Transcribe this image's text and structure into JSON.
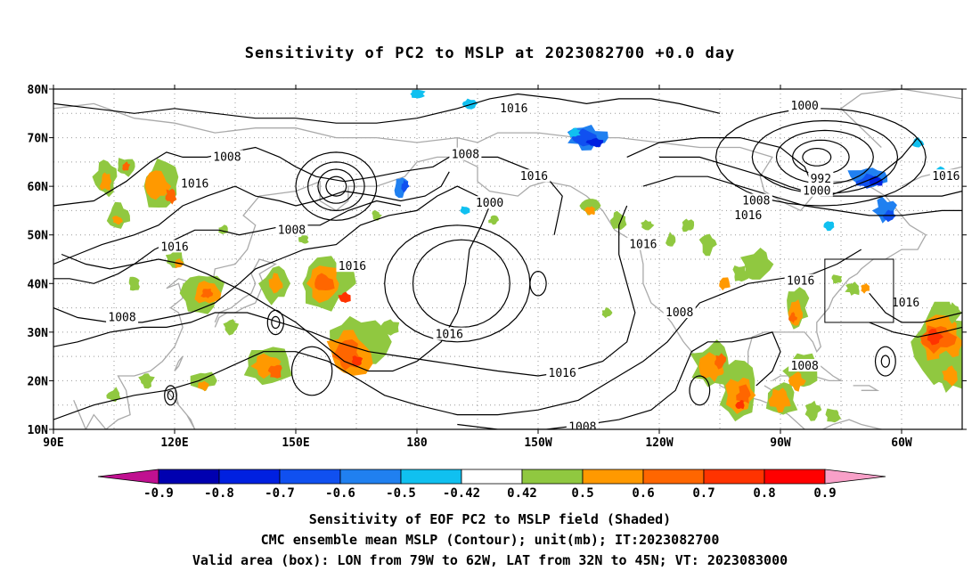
{
  "title": "Sensitivity of PC2 to MSLP at 2023082700 +0.0 day",
  "axes": {
    "lon_ticks": [
      "90E",
      "120E",
      "150E",
      "180",
      "150W",
      "120W",
      "90W",
      "60W"
    ],
    "lat_ticks": [
      "80N",
      "70N",
      "60N",
      "50N",
      "40N",
      "30N",
      "20N",
      "10N"
    ]
  },
  "contour_labels": [
    {
      "text": "1016",
      "lon": -156,
      "lat": 76
    },
    {
      "text": "1000",
      "lon": -84,
      "lat": 76.5
    },
    {
      "text": "1008",
      "lon": 133,
      "lat": 66
    },
    {
      "text": "1008",
      "lon": -168,
      "lat": 66.5
    },
    {
      "text": "1016",
      "lon": 125,
      "lat": 60.5
    },
    {
      "text": "992",
      "lon": -80,
      "lat": 61.5
    },
    {
      "text": "1016",
      "lon": -151,
      "lat": 62
    },
    {
      "text": "1000",
      "lon": -81,
      "lat": 59
    },
    {
      "text": "1016",
      "lon": -49,
      "lat": 62
    },
    {
      "text": "1000",
      "lon": -162,
      "lat": 56.5
    },
    {
      "text": "1008",
      "lon": -96,
      "lat": 57
    },
    {
      "text": "1008",
      "lon": 149,
      "lat": 51
    },
    {
      "text": "1016",
      "lon": -98,
      "lat": 54
    },
    {
      "text": "1016",
      "lon": 120,
      "lat": 47.5
    },
    {
      "text": "1016",
      "lon": -124,
      "lat": 48
    },
    {
      "text": "1016",
      "lon": 164,
      "lat": 43.5
    },
    {
      "text": "1016",
      "lon": -85,
      "lat": 40.5
    },
    {
      "text": "1016",
      "lon": -59,
      "lat": 36
    },
    {
      "text": "1008",
      "lon": 107,
      "lat": 33
    },
    {
      "text": "1008",
      "lon": -115,
      "lat": 34
    },
    {
      "text": "1016",
      "lon": -172,
      "lat": 29.5
    },
    {
      "text": "1008",
      "lon": -84,
      "lat": 23
    },
    {
      "text": "1016",
      "lon": -144,
      "lat": 21.5
    },
    {
      "text": "1008",
      "lon": -139,
      "lat": 10.5
    }
  ],
  "valid_box": {
    "lon_min": -79,
    "lon_max": -62,
    "lat_min": 32,
    "lat_max": 45
  },
  "colorbar": {
    "labels": [
      "-0.9",
      "-0.8",
      "-0.7",
      "-0.6",
      "-0.5",
      "-0.42",
      "0.42",
      "0.5",
      "0.6",
      "0.7",
      "0.8",
      "0.9"
    ],
    "colors": [
      "#c01090",
      "#0000b0",
      "#0020e0",
      "#1050f0",
      "#2080f0",
      "#10c0f0",
      "#ffffff",
      "#90c840",
      "#ff9900",
      "#ff6600",
      "#ff3300",
      "#ff0000",
      "#f8a0c8"
    ]
  },
  "captions": {
    "line1": "Sensitivity of EOF PC2 to MSLP field (Shaded)",
    "line2": "CMC ensemble mean MSLP (Contour); unit(mb); IT:2023082700",
    "line3": "Valid area (box): LON from 79W to 62W, LAT from 32N to 45N; VT: 2023083000"
  }
}
